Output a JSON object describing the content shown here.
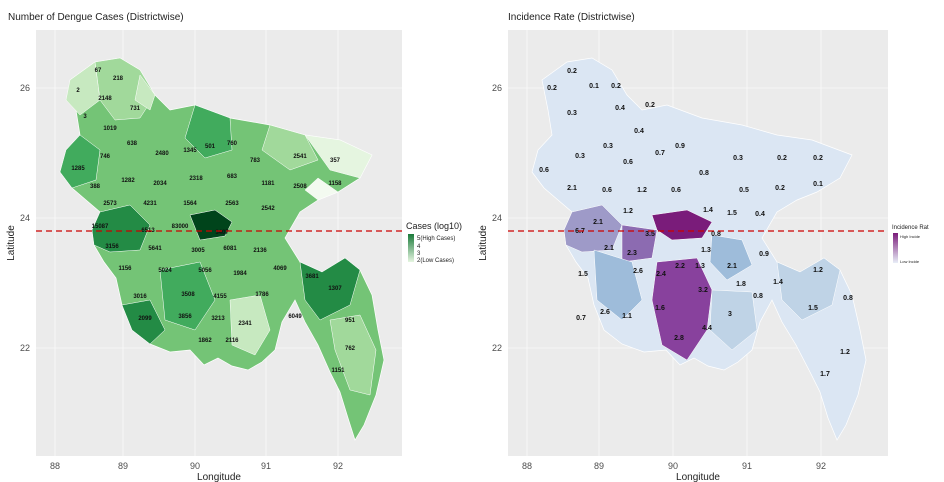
{
  "left_panel": {
    "title": "Number of Dengue Cases (Districtwise)",
    "xlabel": "Longitude",
    "ylabel": "Latitude",
    "xticks": [
      "88",
      "89",
      "90",
      "91",
      "92"
    ],
    "yticks": [
      "26",
      "24",
      "22"
    ],
    "legend": {
      "title": "Cases (log10)",
      "high": "5(High Cases)",
      "mid1": "4",
      "mid2": "3",
      "low": "2(Low Cases)",
      "color_high": "#1a7a3a",
      "color_low": "#e5f5e0"
    },
    "fill_color_dark": "#2e8b47",
    "fill_color_mid": "#74c476",
    "fill_color_light": "#c7e9c0"
  },
  "right_panel": {
    "title": "Incidence Rate (Districtwise)",
    "xlabel": "Longitude",
    "ylabel": "Latitude",
    "xticks": [
      "88",
      "89",
      "90",
      "91",
      "92"
    ],
    "yticks": [
      "26",
      "24",
      "22"
    ],
    "legend": {
      "title": "Incidence Rat",
      "high": "High Incide",
      "low": "Low Incide",
      "color_high": "#7a1c7a",
      "color_low": "#e8eef7"
    },
    "district_labels": [
      "0.2",
      "0.2",
      "0.1",
      "0.2",
      "0.3",
      "0.4",
      "0.2",
      "0.4",
      "0.3",
      "0.7",
      "0.9",
      "0.6",
      "0.3",
      "0.6",
      "0.8",
      "0.3",
      "0.2",
      "0.1",
      "0.2",
      "2.1",
      "0.6",
      "1.2",
      "0.6",
      "0.5",
      "0.2",
      "1.2",
      "1.4",
      "1.5",
      "0.4",
      "2.1",
      "6.7",
      "0.8",
      "2.1",
      "3.5",
      "2.3",
      "1.3",
      "0.9",
      "1.5",
      "2.6",
      "2.4",
      "2.2",
      "1.3",
      "2.1",
      "1.4",
      "0.8",
      "1.2",
      "0.7",
      "2.6",
      "1.1",
      "1.6",
      "3.2",
      "3",
      "1.5",
      "0.8",
      "4.4",
      "2.8",
      "1.8",
      "1.2",
      "1.7"
    ],
    "fill_color_dark": "#8e2a8e",
    "fill_color_mid": "#9e9ac8",
    "fill_color_light": "#dbe6f3"
  },
  "reference_line_color": "#cc0000",
  "panel_background": "#ebebeb"
}
